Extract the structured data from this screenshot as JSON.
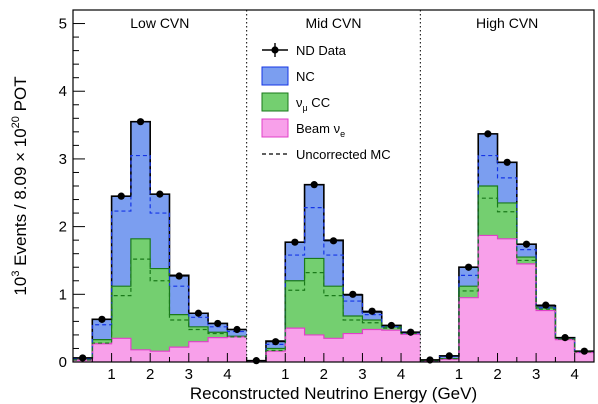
{
  "chart_data": {
    "type": "bar",
    "xlabel": "Reconstructed Neutrino Energy (GeV)",
    "ylabel": {
      "base": "10",
      "exp1": "3",
      "mid": " Events / 8.09 × 10",
      "exp2": "20",
      "tail": " POT"
    },
    "ylim": [
      0,
      5.2
    ],
    "yticks": [
      "0",
      "1",
      "2",
      "3",
      "4",
      "5"
    ],
    "xticks": [
      "1",
      "2",
      "3",
      "4"
    ],
    "panels": [
      {
        "label": "Low CVN",
        "bins": [
          0,
          0.5,
          1,
          1.5,
          2,
          2.5,
          3,
          3.5,
          4,
          4.5
        ],
        "nc": [
          0.06,
          0.63,
          2.45,
          3.55,
          2.48,
          1.28,
          0.72,
          0.57,
          0.48
        ],
        "numu_cc": [
          0.04,
          0.33,
          1.12,
          1.82,
          1.38,
          0.7,
          0.52,
          0.44,
          0.38
        ],
        "beam_nue": [
          0.03,
          0.27,
          0.35,
          0.18,
          0.16,
          0.22,
          0.3,
          0.36,
          0.37
        ],
        "uncorrected_total": [
          0.05,
          0.55,
          2.23,
          3.05,
          2.2,
          1.12,
          0.66,
          0.52,
          0.45
        ],
        "uncorrected_numu": [
          0.03,
          0.28,
          0.98,
          1.52,
          1.2,
          0.62,
          0.48,
          0.42,
          0.37
        ],
        "data": [
          0.06,
          0.63,
          2.45,
          3.55,
          2.48,
          1.27,
          0.72,
          0.57,
          0.48
        ]
      },
      {
        "label": "Mid CVN",
        "bins": [
          0,
          0.5,
          1,
          1.5,
          2,
          2.5,
          3,
          3.5,
          4,
          4.5
        ],
        "nc": [
          0.02,
          0.31,
          1.77,
          2.62,
          1.8,
          0.99,
          0.74,
          0.54,
          0.44
        ],
        "numu_cc": [
          0.02,
          0.2,
          1.2,
          1.53,
          1.12,
          0.68,
          0.62,
          0.52,
          0.43
        ],
        "beam_nue": [
          0.01,
          0.16,
          0.5,
          0.4,
          0.35,
          0.42,
          0.48,
          0.47,
          0.41
        ],
        "uncorrected_total": [
          0.02,
          0.26,
          1.58,
          2.28,
          1.58,
          0.9,
          0.7,
          0.52,
          0.43
        ],
        "uncorrected_numu": [
          0.02,
          0.17,
          1.06,
          1.32,
          0.98,
          0.62,
          0.58,
          0.5,
          0.42
        ],
        "data": [
          0.02,
          0.3,
          1.77,
          2.62,
          1.79,
          1.0,
          0.75,
          0.54,
          0.44
        ]
      },
      {
        "label": "High CVN",
        "bins": [
          0,
          0.5,
          1,
          1.5,
          2,
          2.5,
          3,
          3.5,
          4,
          4.5
        ],
        "nc": [
          0.03,
          0.09,
          1.4,
          3.37,
          2.95,
          1.74,
          0.83,
          0.36,
          0.16
        ],
        "numu_cc": [
          0.02,
          0.05,
          1.12,
          2.6,
          2.35,
          1.55,
          0.8,
          0.35,
          0.15
        ],
        "beam_nue": [
          0.01,
          0.04,
          0.95,
          1.87,
          1.82,
          1.45,
          0.76,
          0.33,
          0.14
        ],
        "uncorrected_total": [
          0.02,
          0.08,
          1.28,
          3.05,
          2.72,
          1.66,
          0.8,
          0.35,
          0.15
        ],
        "uncorrected_numu": [
          0.02,
          0.05,
          1.05,
          2.42,
          2.22,
          1.5,
          0.78,
          0.34,
          0.15
        ],
        "data": [
          0.03,
          0.09,
          1.4,
          3.37,
          2.95,
          1.74,
          0.84,
          0.36,
          0.16
        ]
      }
    ],
    "legend": {
      "placement": "top-center",
      "entries": [
        {
          "key": "data",
          "label": "ND Data"
        },
        {
          "key": "nc",
          "label": "NC"
        },
        {
          "key": "numu_cc",
          "label": "ν",
          "sub": "μ",
          "tail": " CC"
        },
        {
          "key": "beam_nue",
          "label": "Beam ν",
          "sub": "e",
          "tail": ""
        },
        {
          "key": "uncorrected",
          "label": "Uncorrected MC"
        }
      ]
    },
    "colors": {
      "nc_fill": "#7b9ef0",
      "nc_line": "#1535e6",
      "numu_fill": "#74cf70",
      "numu_line": "#1a7a1a",
      "nue_fill": "#f8a0ea",
      "nue_line": "#e040c8",
      "data": "#000000"
    },
    "grid": false
  }
}
